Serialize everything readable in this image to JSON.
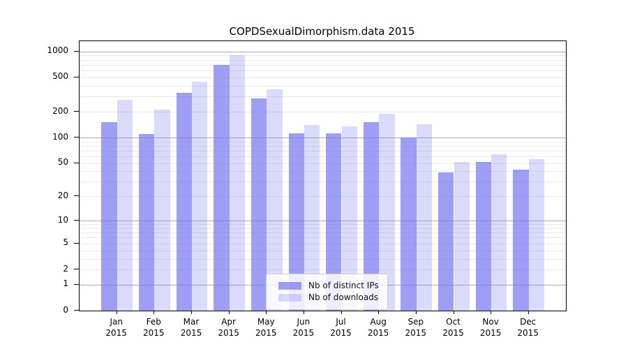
{
  "chart_data": {
    "type": "bar",
    "title": "COPDSexualDimorphism.data 2015",
    "xlabel": "",
    "ylabel": "",
    "scale": "log1p",
    "grid": "both",
    "ylim": [
      0,
      1316
    ],
    "yticks": [
      0,
      1,
      2,
      5,
      10,
      20,
      50,
      100,
      200,
      500,
      1000
    ],
    "grid_major_at": [
      1,
      10,
      100,
      1000
    ],
    "categories": [
      "Jan",
      "Feb",
      "Mar",
      "Apr",
      "May",
      "Jun",
      "Jul",
      "Aug",
      "Sep",
      "Oct",
      "Nov",
      "Dec"
    ],
    "category_year": "2015",
    "series": [
      {
        "name": "Nb of distinct IPs",
        "color": "#7878f0",
        "opacity": 0.72,
        "values": [
          150,
          110,
          333,
          700,
          285,
          113,
          112,
          152,
          100,
          39,
          52,
          42
        ]
      },
      {
        "name": "Nb of downloads",
        "color": "#7878f0",
        "opacity": 0.27,
        "values": [
          276,
          211,
          447,
          911,
          366,
          139,
          135,
          190,
          144,
          52,
          64,
          56
        ]
      }
    ],
    "legend_position": "lower-center",
    "colors": {
      "axis": "#000000",
      "grid_major": "#ababab",
      "grid_minor": "#e8e8e8",
      "text": "#000000",
      "legend_border": "#cccccc"
    }
  }
}
